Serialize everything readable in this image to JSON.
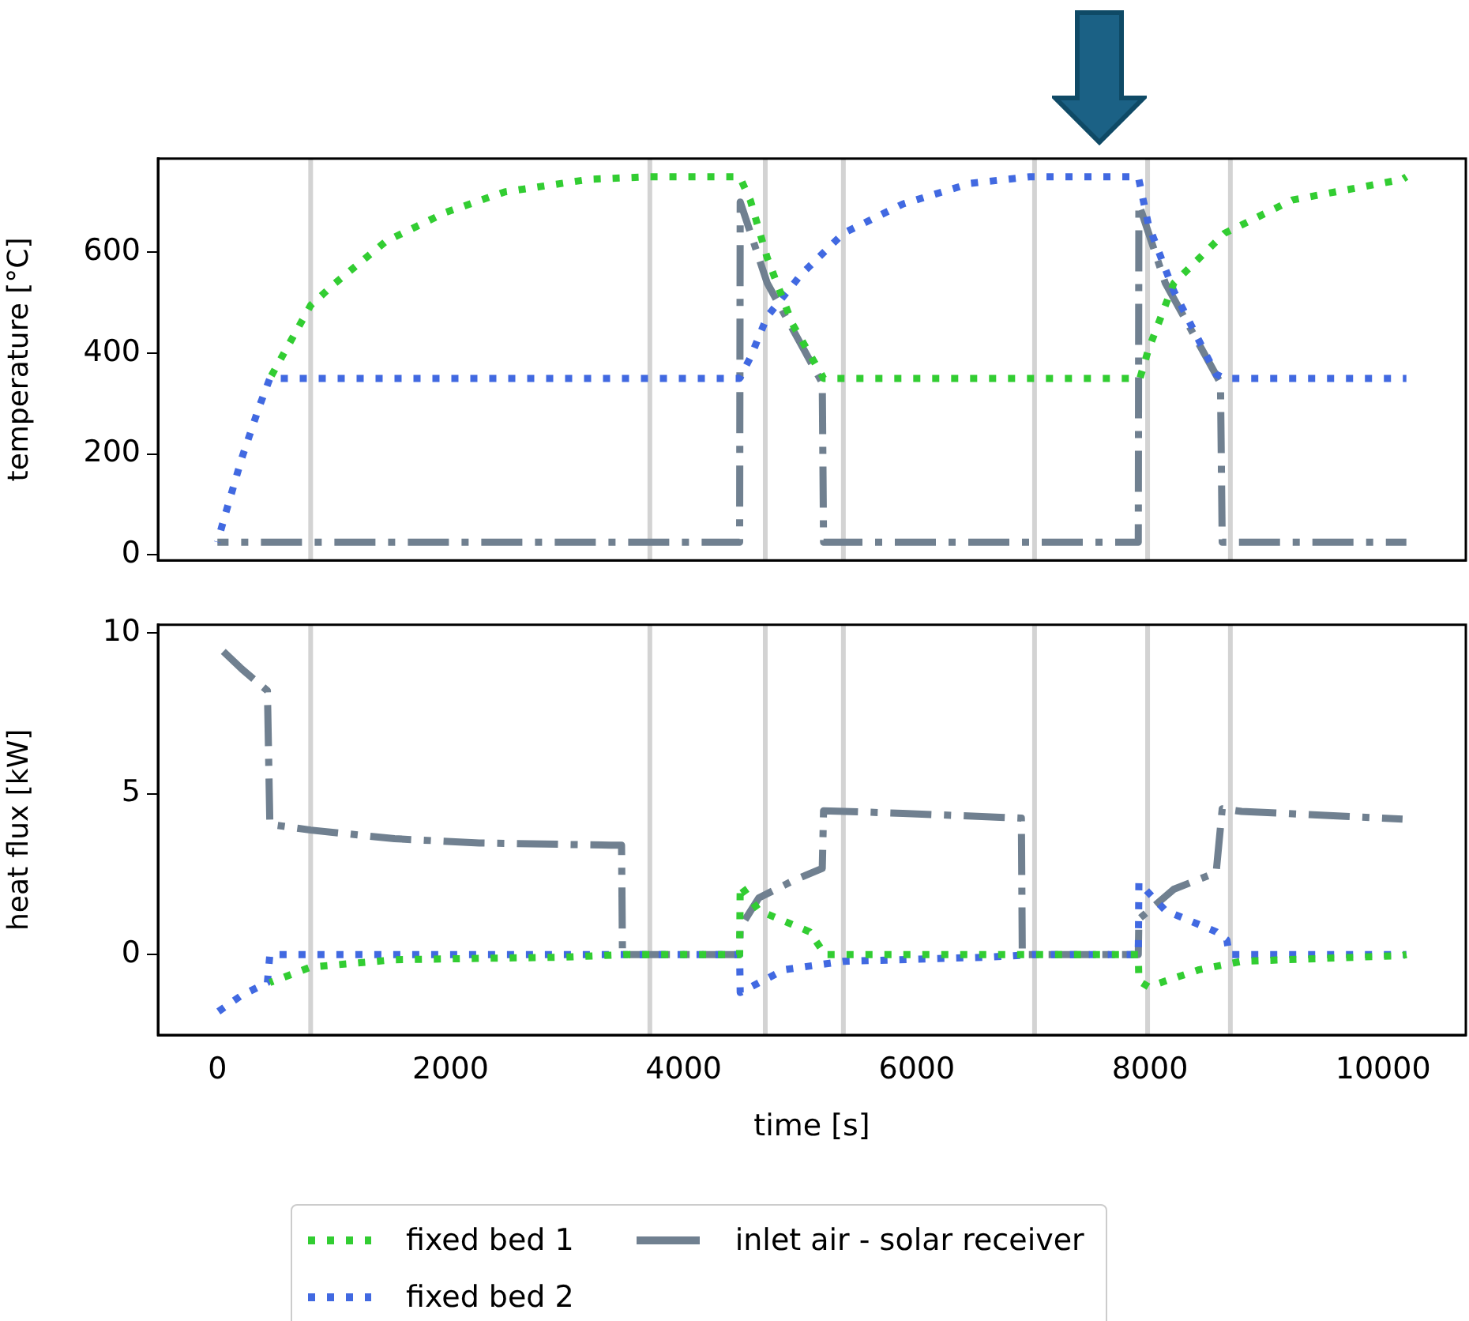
{
  "chart_data": [
    {
      "type": "line",
      "ylabel": "temperature [°C]",
      "xlim": [
        -510,
        10710
      ],
      "xticks": [
        0,
        2000,
        4000,
        6000,
        8000,
        10000
      ],
      "ylim": [
        -11,
        786
      ],
      "yticks": [
        0,
        200,
        400,
        600
      ],
      "tick_labels": "y",
      "grid": false,
      "marker": "none",
      "series": [
        {
          "color": "#32cd32",
          "line_style": "dotted",
          "x": [
            450,
            800,
            1010,
            1446,
            1955,
            2464,
            3190,
            3700,
            4480,
            4571,
            4717,
            4935,
            5189,
            5200,
            7914,
            7987,
            8205,
            8641,
            9222,
            10167,
            10200
          ],
          "values": [
            350,
            495,
            539,
            622,
            679,
            720,
            745,
            750,
            750,
            704,
            589,
            457,
            355,
            350,
            350,
            407,
            539,
            638,
            704,
            745,
            750
          ]
        },
        {
          "color": "#4169e1",
          "line_style": "dotted",
          "x": [
            0,
            65,
            211,
            356,
            450,
            4480,
            4571,
            4717,
            5007,
            5371,
            5880,
            6461,
            6970,
            7900,
            7987,
            8205,
            8568,
            8640,
            10200
          ],
          "values": [
            25,
            78,
            193,
            292,
            350,
            350,
            391,
            473,
            556,
            638,
            696,
            737,
            750,
            750,
            655,
            523,
            358,
            350,
            350
          ]
        },
        {
          "color": "#708090",
          "line_style": "dashdot",
          "x": [
            0,
            4480,
            4485,
            4717,
            5189,
            5200,
            7900,
            7905,
            8132,
            8605,
            8620,
            10200
          ],
          "values": [
            25,
            25,
            700,
            539,
            341,
            25,
            25,
            696,
            539,
            341,
            25,
            25
          ]
        }
      ],
      "ref_lines": [
        {
          "axis": "x",
          "value": 800,
          "color": "#d3d3d3"
        },
        {
          "axis": "x",
          "value": 3710,
          "color": "#d3d3d3"
        },
        {
          "axis": "x",
          "value": 4700,
          "color": "#d3d3d3"
        },
        {
          "axis": "x",
          "value": 5370,
          "color": "#d3d3d3"
        },
        {
          "axis": "x",
          "value": 7010,
          "color": "#d3d3d3"
        },
        {
          "axis": "x",
          "value": 7980,
          "color": "#d3d3d3"
        },
        {
          "axis": "x",
          "value": 8690,
          "color": "#d3d3d3"
        }
      ]
    },
    {
      "type": "line",
      "xlabel": "time [s]",
      "ylabel": "heat flux [kW]",
      "xlim": [
        -510,
        10710
      ],
      "xticks": [
        0,
        2000,
        4000,
        6000,
        8000,
        10000
      ],
      "ylim": [
        -2.5,
        10.25
      ],
      "yticks": [
        0,
        5,
        10
      ],
      "grid": false,
      "marker": "none",
      "legend": "bottom",
      "series": [
        {
          "name": "fixed bed 1",
          "color": "#32cd32",
          "line_style": "dotted",
          "x": [
            450,
            800,
            1519,
            2972,
            3500,
            4480,
            4485,
            4644,
            5080,
            5189,
            5200,
            7900,
            7905,
            7987,
            8423,
            8786,
            10167,
            10200
          ],
          "values": [
            -0.87,
            -0.39,
            -0.16,
            -0.08,
            0,
            0,
            2.16,
            1.37,
            0.71,
            0.13,
            0,
            0,
            -0.82,
            -1.0,
            -0.47,
            -0.21,
            -0.03,
            0
          ]
        },
        {
          "name": "fixed bed 2",
          "color": "#4169e1",
          "line_style": "dotted",
          "x": [
            0,
            211,
            429,
            450,
            4480,
            4485,
            4862,
            5371,
            6606,
            7000,
            7900,
            7905,
            8132,
            8568,
            8660,
            8680,
            10200
          ],
          "values": [
            -1.79,
            -1.26,
            -0.87,
            0,
            0,
            -1.18,
            -0.47,
            -0.21,
            -0.08,
            0,
            0,
            2.24,
            1.37,
            0.71,
            0.45,
            0,
            0
          ]
        },
        {
          "name": "inlet air - solar receiver",
          "color": "#708090",
          "line_style": "dashdot",
          "x": [
            0,
            211,
            429,
            450,
            800,
            1519,
            2246,
            3372,
            3467,
            3475,
            4480,
            4485,
            4644,
            4935,
            5189,
            5200,
            5880,
            6897,
            6905,
            7900,
            7905,
            8205,
            8568,
            8620,
            8786,
            10167
          ],
          "values": [
            9.6,
            8.87,
            8.2,
            4.05,
            3.87,
            3.6,
            3.47,
            3.4,
            3.4,
            0,
            0,
            0.84,
            1.76,
            2.29,
            2.68,
            4.47,
            4.39,
            4.24,
            0,
            0,
            1.1,
            2.03,
            2.55,
            4.53,
            4.45,
            4.21
          ]
        }
      ],
      "ref_lines": [
        {
          "axis": "x",
          "value": 800,
          "color": "#d3d3d3"
        },
        {
          "axis": "x",
          "value": 3710,
          "color": "#d3d3d3"
        },
        {
          "axis": "x",
          "value": 4700,
          "color": "#d3d3d3"
        },
        {
          "axis": "x",
          "value": 5370,
          "color": "#d3d3d3"
        },
        {
          "axis": "x",
          "value": 7010,
          "color": "#d3d3d3"
        },
        {
          "axis": "x",
          "value": 7980,
          "color": "#d3d3d3"
        },
        {
          "axis": "x",
          "value": 8690,
          "color": "#d3d3d3"
        }
      ]
    }
  ]
}
